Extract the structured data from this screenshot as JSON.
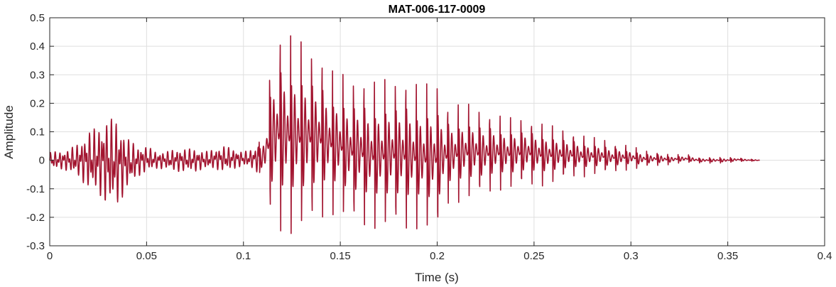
{
  "chart_data": {
    "type": "line",
    "title": "MAT-006-117-0009",
    "xlabel": "Time (s)",
    "ylabel": "Amplitude",
    "xlim": [
      0,
      0.4
    ],
    "ylim": [
      -0.3,
      0.5
    ],
    "x_ticks": [
      0,
      0.05,
      0.1,
      0.15,
      0.2,
      0.25,
      0.3,
      0.35,
      0.4
    ],
    "x_tick_labels": [
      "0",
      "0.05",
      "0.1",
      "0.15",
      "0.2",
      "0.25",
      "0.3",
      "0.35",
      "0.4"
    ],
    "y_ticks": [
      -0.3,
      -0.2,
      -0.1,
      0,
      0.1,
      0.2,
      0.3,
      0.4,
      0.5
    ],
    "y_tick_labels": [
      "-0.3",
      "-0.2",
      "-0.1",
      "0",
      "0.1",
      "0.2",
      "0.3",
      "0.4",
      "0.5"
    ],
    "grid": true,
    "line_color": "#A2142F",
    "grid_color": "#dfdfdf",
    "axis_color": "#262626",
    "series": [
      {
        "x": [
          0,
          0.005,
          0.01,
          0.015,
          0.02,
          0.025,
          0.03,
          0.035,
          0.04,
          0.045,
          0.05,
          0.055,
          0.06,
          0.065,
          0.07,
          0.075,
          0.08,
          0.085,
          0.09,
          0.095,
          0.1,
          0.105,
          0.11,
          0.113,
          0.117,
          0.121,
          0.125,
          0.13,
          0.135,
          0.14,
          0.145,
          0.15,
          0.155,
          0.16,
          0.165,
          0.17,
          0.175,
          0.18,
          0.185,
          0.19,
          0.195,
          0.2,
          0.205,
          0.21,
          0.215,
          0.22,
          0.225,
          0.23,
          0.235,
          0.24,
          0.245,
          0.25,
          0.255,
          0.26,
          0.265,
          0.27,
          0.275,
          0.28,
          0.285,
          0.29,
          0.295,
          0.3,
          0.305,
          0.31,
          0.315,
          0.32,
          0.325,
          0.33,
          0.335,
          0.34,
          0.345,
          0.35,
          0.355,
          0.36,
          0.3665
        ],
        "y_max": [
          0.03,
          0.03,
          0.04,
          0.06,
          0.1,
          0.12,
          0.15,
          0.14,
          0.08,
          0.05,
          0.05,
          0.03,
          0.03,
          0.04,
          0.04,
          0.04,
          0.03,
          0.04,
          0.05,
          0.04,
          0.03,
          0.04,
          0.08,
          0.3,
          0.45,
          0.45,
          0.44,
          0.42,
          0.4,
          0.37,
          0.32,
          0.31,
          0.29,
          0.3,
          0.28,
          0.28,
          0.29,
          0.29,
          0.29,
          0.27,
          0.27,
          0.28,
          0.2,
          0.2,
          0.2,
          0.19,
          0.17,
          0.17,
          0.15,
          0.15,
          0.15,
          0.14,
          0.13,
          0.12,
          0.11,
          0.1,
          0.09,
          0.08,
          0.08,
          0.06,
          0.06,
          0.05,
          0.04,
          0.03,
          0.03,
          0.02,
          0.02,
          0.02,
          0.01,
          0.01,
          0.01,
          0.01,
          0.01,
          0.005,
          0.002
        ],
        "y_min": [
          -0.03,
          -0.03,
          -0.04,
          -0.06,
          -0.1,
          -0.12,
          -0.16,
          -0.16,
          -0.1,
          -0.06,
          -0.04,
          -0.03,
          -0.03,
          -0.04,
          -0.04,
          -0.04,
          -0.03,
          -0.03,
          -0.04,
          -0.03,
          -0.02,
          -0.03,
          -0.06,
          -0.18,
          -0.25,
          -0.26,
          -0.26,
          -0.25,
          -0.23,
          -0.21,
          -0.19,
          -0.2,
          -0.22,
          -0.23,
          -0.24,
          -0.24,
          -0.24,
          -0.24,
          -0.25,
          -0.24,
          -0.25,
          -0.26,
          -0.16,
          -0.15,
          -0.14,
          -0.13,
          -0.12,
          -0.11,
          -0.1,
          -0.1,
          -0.09,
          -0.09,
          -0.09,
          -0.08,
          -0.07,
          -0.06,
          -0.06,
          -0.05,
          -0.05,
          -0.04,
          -0.04,
          -0.03,
          -0.03,
          -0.02,
          -0.02,
          -0.015,
          -0.01,
          -0.01,
          -0.01,
          -0.01,
          -0.01,
          -0.01,
          -0.005,
          -0.004,
          -0.002
        ]
      }
    ]
  }
}
